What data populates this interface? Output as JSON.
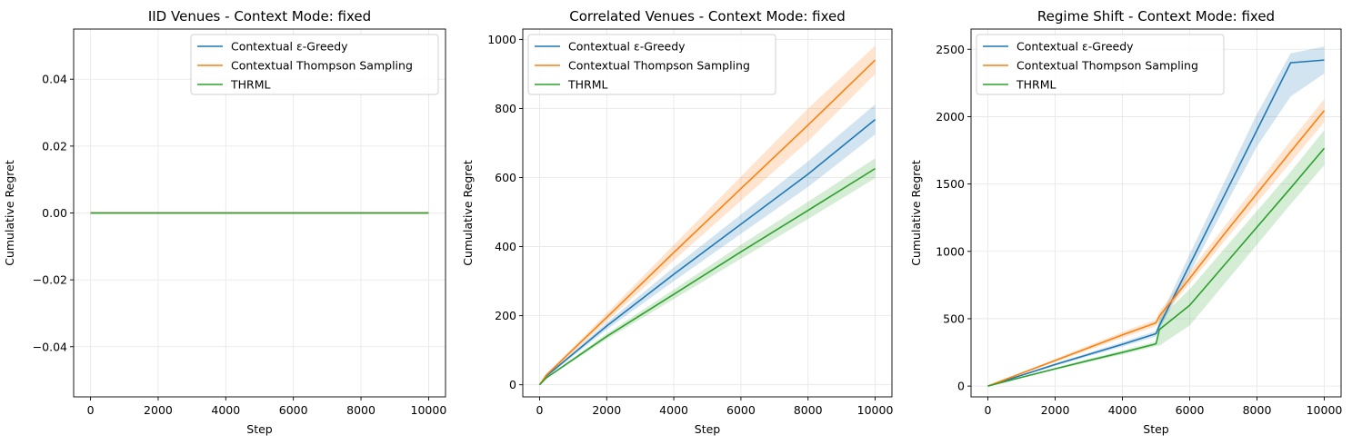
{
  "colors": {
    "blue": "#1f77b4",
    "orange": "#ff7f0e",
    "green": "#2ca02c",
    "grid": "#e6e6e6"
  },
  "chart_data": [
    {
      "type": "line",
      "title": "IID Venues - Context Mode: fixed",
      "xlabel": "Step",
      "ylabel": "Cumulative Regret",
      "xlim": [
        -500,
        10500
      ],
      "ylim": [
        -0.055,
        0.055
      ],
      "xticks": [
        0,
        2000,
        4000,
        6000,
        8000,
        10000
      ],
      "xtick_labels": [
        "0",
        "2000",
        "4000",
        "6000",
        "8000",
        "10000"
      ],
      "yticks": [
        -0.04,
        -0.02,
        0.0,
        0.02,
        0.04
      ],
      "ytick_labels": [
        "−0.04",
        "−0.02",
        "0.00",
        "0.02",
        "0.04"
      ],
      "grid": true,
      "legend_position": "top-right",
      "series": [
        {
          "name": "Contextual ε-Greedy",
          "color": "#1f77b4",
          "x": [
            0,
            10000
          ],
          "y": [
            0,
            0
          ],
          "lower": [
            0,
            0
          ],
          "upper": [
            0,
            0
          ]
        },
        {
          "name": "Contextual Thompson Sampling",
          "color": "#ff7f0e",
          "x": [
            0,
            10000
          ],
          "y": [
            0,
            0
          ],
          "lower": [
            0,
            0
          ],
          "upper": [
            0,
            0
          ]
        },
        {
          "name": "THRML",
          "color": "#2ca02c",
          "x": [
            0,
            10000
          ],
          "y": [
            0,
            0
          ],
          "lower": [
            0,
            0
          ],
          "upper": [
            0,
            0
          ]
        }
      ]
    },
    {
      "type": "line",
      "title": "Correlated Venues - Context Mode: fixed",
      "xlabel": "Step",
      "ylabel": "Cumulative Regret",
      "xlim": [
        -500,
        10500
      ],
      "ylim": [
        -35,
        1030
      ],
      "xticks": [
        0,
        2000,
        4000,
        6000,
        8000,
        10000
      ],
      "xtick_labels": [
        "0",
        "2000",
        "4000",
        "6000",
        "8000",
        "10000"
      ],
      "yticks": [
        0,
        200,
        400,
        600,
        800,
        1000
      ],
      "ytick_labels": [
        "0",
        "200",
        "400",
        "600",
        "800",
        "1000"
      ],
      "grid": true,
      "legend_position": "top-left",
      "series": [
        {
          "name": "Contextual ε-Greedy",
          "color": "#1f77b4",
          "x": [
            0,
            200,
            2000,
            4000,
            6000,
            8000,
            10000
          ],
          "y": [
            0,
            25,
            170,
            320,
            465,
            610,
            768
          ],
          "lower": [
            0,
            22,
            160,
            300,
            437,
            573,
            725
          ],
          "upper": [
            0,
            28,
            180,
            340,
            493,
            647,
            812
          ]
        },
        {
          "name": "Contextual Thompson Sampling",
          "color": "#ff7f0e",
          "x": [
            0,
            200,
            2000,
            4000,
            6000,
            8000,
            10000
          ],
          "y": [
            0,
            28,
            195,
            383,
            568,
            752,
            940
          ],
          "lower": [
            0,
            25,
            183,
            360,
            533,
            705,
            900
          ],
          "upper": [
            0,
            31,
            207,
            405,
            603,
            800,
            982
          ]
        },
        {
          "name": "THRML",
          "color": "#2ca02c",
          "x": [
            0,
            200,
            2000,
            4000,
            6000,
            8000,
            10000
          ],
          "y": [
            0,
            20,
            140,
            262,
            385,
            505,
            626
          ],
          "lower": [
            0,
            18,
            132,
            248,
            365,
            480,
            598
          ],
          "upper": [
            0,
            22,
            148,
            276,
            405,
            530,
            656
          ]
        }
      ]
    },
    {
      "type": "line",
      "title": "Regime Shift - Context Mode: fixed",
      "xlabel": "Step",
      "ylabel": "Cumulative Regret",
      "xlim": [
        -500,
        10500
      ],
      "ylim": [
        -80,
        2650
      ],
      "xticks": [
        0,
        2000,
        4000,
        6000,
        8000,
        10000
      ],
      "xtick_labels": [
        "0",
        "2000",
        "4000",
        "6000",
        "8000",
        "10000"
      ],
      "yticks": [
        0,
        500,
        1000,
        1500,
        2000,
        2500
      ],
      "ytick_labels": [
        "0",
        "500",
        "1000",
        "1500",
        "2000",
        "2500"
      ],
      "grid": true,
      "legend_position": "top-left",
      "series": [
        {
          "name": "Contextual ε-Greedy",
          "color": "#1f77b4",
          "x": [
            0,
            1000,
            2000,
            3000,
            4000,
            4950,
            5000,
            5100,
            6000,
            7000,
            8000,
            9000,
            10000
          ],
          "y": [
            0,
            80,
            160,
            235,
            310,
            385,
            390,
            450,
            900,
            1400,
            1900,
            2400,
            2420
          ],
          "lower": [
            0,
            75,
            150,
            222,
            293,
            365,
            372,
            420,
            840,
            1310,
            1780,
            2150,
            2320
          ],
          "upper": [
            0,
            85,
            170,
            248,
            327,
            405,
            408,
            500,
            980,
            1500,
            2020,
            2470,
            2520
          ]
        },
        {
          "name": "Contextual Thompson Sampling",
          "color": "#ff7f0e",
          "x": [
            0,
            1000,
            2000,
            3000,
            4000,
            4950,
            5000,
            5100,
            6000,
            7000,
            8000,
            9000,
            10000
          ],
          "y": [
            0,
            95,
            190,
            285,
            380,
            465,
            470,
            520,
            800,
            1120,
            1430,
            1740,
            2045
          ],
          "lower": [
            0,
            90,
            178,
            268,
            358,
            440,
            445,
            490,
            760,
            1065,
            1360,
            1660,
            1960
          ],
          "upper": [
            0,
            100,
            202,
            302,
            402,
            490,
            495,
            555,
            850,
            1175,
            1500,
            1820,
            2130
          ]
        },
        {
          "name": "THRML",
          "color": "#2ca02c",
          "x": [
            0,
            1000,
            2000,
            3000,
            4000,
            4950,
            5000,
            5100,
            6000,
            7000,
            8000,
            9000,
            10000
          ],
          "y": [
            0,
            65,
            128,
            190,
            250,
            310,
            315,
            420,
            600,
            890,
            1180,
            1470,
            1765
          ],
          "lower": [
            0,
            60,
            120,
            178,
            235,
            292,
            298,
            300,
            450,
            750,
            1050,
            1350,
            1640
          ],
          "upper": [
            0,
            70,
            136,
            202,
            265,
            328,
            332,
            500,
            720,
            1010,
            1300,
            1590,
            1900
          ]
        }
      ]
    }
  ]
}
